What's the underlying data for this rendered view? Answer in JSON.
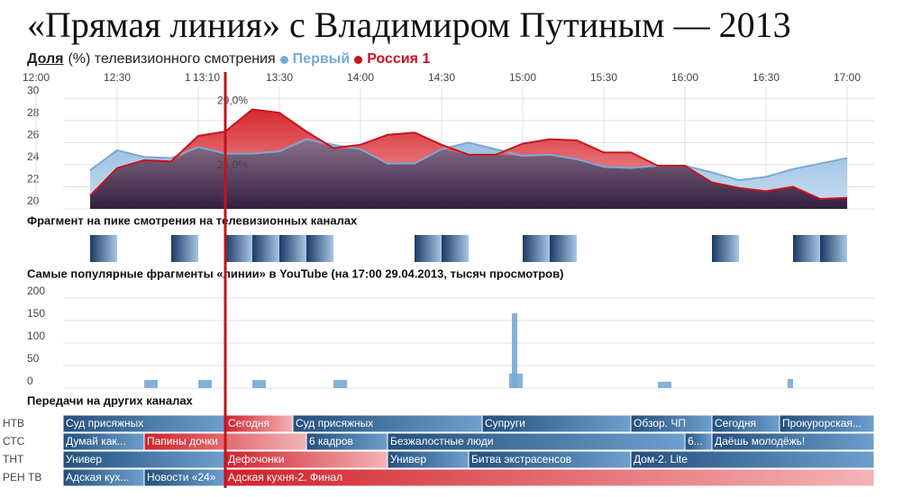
{
  "header": {
    "title": "«Прямая линия» с Владимиром Путиным — 2013",
    "subtitle_lead": "Доля",
    "subtitle": "(%) телевизионного смотрения"
  },
  "chart_data": [
    {
      "type": "area",
      "x": [
        "12:20",
        "12:30",
        "12:40",
        "12:50",
        "13:00",
        "13:10",
        "13:20",
        "13:30",
        "13:40",
        "13:50",
        "14:00",
        "14:10",
        "14:20",
        "14:30",
        "14:40",
        "14:50",
        "15:00",
        "15:10",
        "15:20",
        "15:30",
        "15:40",
        "15:50",
        "16:00",
        "16:10",
        "16:20",
        "16:30",
        "16:40",
        "16:50",
        "17:00"
      ],
      "xticks": [
        "12:00",
        "12:30",
        "13:00",
        "13:30",
        "14:00",
        "14:30",
        "15:00",
        "15:30",
        "16:00",
        "16:30",
        "17:00"
      ],
      "ylim": [
        20,
        31
      ],
      "yticks": [
        20,
        22,
        24,
        26,
        28,
        30
      ],
      "grid": true,
      "series": [
        {
          "name": "Первый",
          "color": "#78a9d6",
          "values": [
            23.5,
            25.3,
            24.7,
            24.6,
            25.6,
            25.0,
            25.0,
            25.2,
            26.3,
            25.8,
            25.4,
            24.1,
            24.1,
            25.4,
            26.0,
            25.4,
            24.8,
            24.9,
            24.5,
            23.8,
            23.7,
            23.9,
            23.9,
            23.3,
            22.6,
            22.9,
            23.6,
            24.1,
            24.6
          ],
          "value_labels": [
            null,
            null,
            null,
            null,
            null,
            null,
            "25,0%",
            null,
            null,
            null,
            null,
            null,
            null,
            null,
            null,
            null,
            null,
            null,
            null,
            null,
            null,
            null,
            null,
            null,
            null,
            null,
            null,
            null,
            null
          ]
        },
        {
          "name": "Россия 1",
          "color": "#c8141c",
          "values": [
            21.2,
            23.7,
            24.4,
            24.3,
            26.6,
            27.0,
            29.0,
            28.7,
            27.0,
            25.5,
            25.8,
            26.7,
            26.9,
            25.8,
            24.9,
            24.9,
            25.9,
            26.3,
            26.2,
            25.1,
            25.1,
            23.9,
            23.9,
            22.4,
            21.9,
            21.6,
            22.0,
            20.9,
            21.0
          ],
          "value_labels": [
            null,
            null,
            null,
            null,
            null,
            null,
            "29,0%",
            null,
            null,
            null,
            null,
            null,
            null,
            null,
            null,
            null,
            null,
            null,
            null,
            null,
            null,
            null,
            null,
            null,
            null,
            null,
            null,
            null,
            null
          ]
        }
      ],
      "annotations": [
        {
          "label": "13:10"
        }
      ]
    },
    {
      "type": "strip",
      "title": "Фрагмент на пике смотрения на телевизионных каналах",
      "x": [
        "12:20",
        "12:50",
        "13:10",
        "13:20",
        "13:30",
        "13:40",
        "14:20",
        "14:30",
        "15:00",
        "15:10",
        "16:10",
        "16:40",
        "16:50"
      ]
    },
    {
      "type": "bar",
      "title": "Самые популярные фрагменты «линии» в YouTube (на 17:00 29.04.2013, тысяч просмотров)",
      "x": [
        "12:40",
        "13:00",
        "13:20",
        "13:50",
        "14:55",
        "14:56",
        "15:50",
        "16:38"
      ],
      "x_end": [
        "12:45",
        "13:05",
        "13:25",
        "13:55",
        "15:00",
        "14:58",
        "15:55",
        "16:40"
      ],
      "values": [
        18,
        18,
        18,
        18,
        32,
        166,
        14,
        20
      ],
      "color": "#78a9d6",
      "ylim": [
        0,
        200
      ],
      "yticks": [
        0,
        50,
        100,
        150,
        200
      ],
      "grid": true
    },
    {
      "type": "schedule",
      "title": "Передачи на других каналах",
      "channels": [
        {
          "name": "НТВ",
          "programs": [
            {
              "title": "Суд присяжных",
              "start": "12:10",
              "end": "13:10",
              "color": "#24507c"
            },
            {
              "title": "Сегодня",
              "start": "13:10",
              "end": "13:35",
              "color": "#d0222a"
            },
            {
              "title": "Суд присяжных",
              "start": "13:35",
              "end": "14:45",
              "color": "#24507c"
            },
            {
              "title": "Супруги",
              "start": "14:45",
              "end": "15:40",
              "color": "#24507c"
            },
            {
              "title": "Обзор. ЧП",
              "start": "15:40",
              "end": "16:10",
              "color": "#24507c"
            },
            {
              "title": "Сегодня",
              "start": "16:10",
              "end": "16:35",
              "color": "#24507c"
            },
            {
              "title": "Прокурорская...",
              "start": "16:35",
              "end": "17:10",
              "color": "#24507c"
            }
          ]
        },
        {
          "name": "СТС",
          "programs": [
            {
              "title": "Думай как...",
              "start": "12:10",
              "end": "12:40",
              "color": "#24507c"
            },
            {
              "title": "Папины дочки",
              "start": "12:40",
              "end": "13:40",
              "color": "#d0222a"
            },
            {
              "title": "6 кадров",
              "start": "13:40",
              "end": "14:10",
              "color": "#24507c"
            },
            {
              "title": "Безжалостные люди",
              "start": "14:10",
              "end": "16:00",
              "color": "#24507c"
            },
            {
              "title": "6...",
              "start": "16:00",
              "end": "16:10",
              "color": "#24507c"
            },
            {
              "title": "Даёшь молодёжь!",
              "start": "16:10",
              "end": "17:10",
              "color": "#24507c"
            }
          ]
        },
        {
          "name": "ТНТ",
          "programs": [
            {
              "title": "Универ",
              "start": "12:10",
              "end": "13:10",
              "color": "#24507c"
            },
            {
              "title": "Дефочонки",
              "start": "13:10",
              "end": "14:10",
              "color": "#d0222a"
            },
            {
              "title": "Универ",
              "start": "14:10",
              "end": "14:40",
              "color": "#24507c"
            },
            {
              "title": "Битва экстрасенсов",
              "start": "14:40",
              "end": "15:40",
              "color": "#24507c"
            },
            {
              "title": "Дом-2. Lite",
              "start": "15:40",
              "end": "17:10",
              "color": "#24507c"
            }
          ]
        },
        {
          "name": "РЕН ТВ",
          "programs": [
            {
              "title": "Адская кух...",
              "start": "12:10",
              "end": "12:40",
              "color": "#24507c"
            },
            {
              "title": "Новости «24»",
              "start": "12:40",
              "end": "13:10",
              "color": "#24507c"
            },
            {
              "title": "Адская кухня-2. Финал",
              "start": "13:10",
              "end": "17:10",
              "color": "#d0222a"
            }
          ]
        }
      ]
    }
  ]
}
